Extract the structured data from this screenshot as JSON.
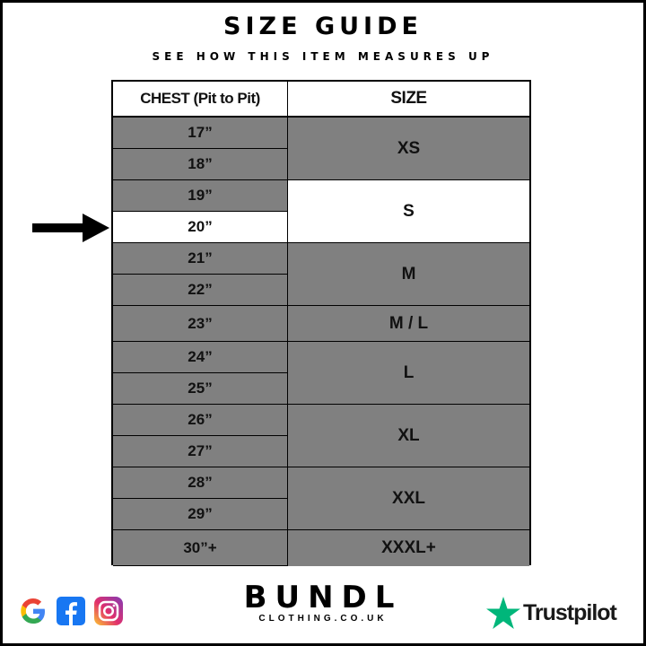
{
  "title": "SIZE GUIDE",
  "subtitle": "SEE HOW THIS ITEM MEASURES UP",
  "table": {
    "headers": [
      "CHEST (Pit to Pit)",
      "SIZE"
    ],
    "chest_rows": [
      "17”",
      "18”",
      "19”",
      "20”",
      "21”",
      "22”",
      "23”",
      "24”",
      "25”",
      "26”",
      "27”",
      "28”",
      "29”",
      "30”+"
    ],
    "size_groups": [
      {
        "label": "XS",
        "rows": 2
      },
      {
        "label": "S",
        "rows": 2
      },
      {
        "label": "M",
        "rows": 2
      },
      {
        "label": "M / L",
        "rows": 1
      },
      {
        "label": "L",
        "rows": 2
      },
      {
        "label": "XL",
        "rows": 2
      },
      {
        "label": "XXL",
        "rows": 2
      },
      {
        "label": "XXXL+",
        "rows": 1
      }
    ],
    "highlighted_chest": "20”",
    "highlighted_size": "S"
  },
  "colors": {
    "row_fill": "#808080",
    "highlight_fill": "#ffffff",
    "trustpilot_green": "#00b67a",
    "facebook_blue": "#1877f2"
  },
  "footer": {
    "brand": "BUNDL",
    "brand_sub": "CLOTHING.CO.UK",
    "trustpilot": "Trustpilot",
    "social_icons": [
      "google-icon",
      "facebook-icon",
      "instagram-icon"
    ]
  }
}
